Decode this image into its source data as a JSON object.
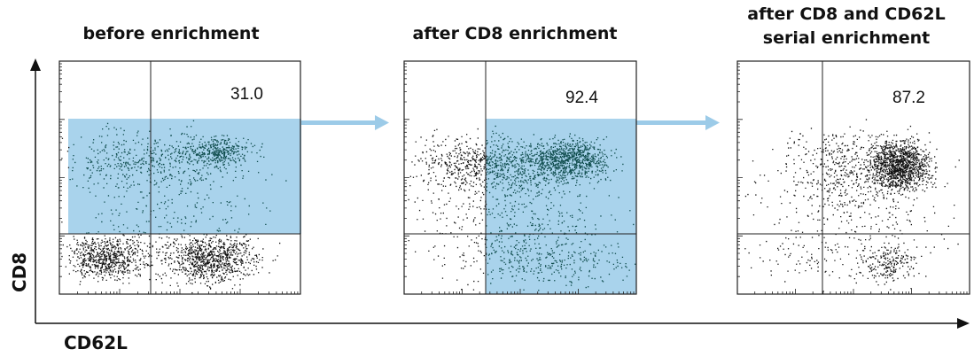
{
  "x_axis_label": "CD62L",
  "y_axis_label": "CD8",
  "colors": {
    "gate_fill": "#a9d3ec",
    "arrow": "#9ccbe8",
    "dot_outside_gate": "#111111",
    "dot_inside_gate": "#0c4a4a",
    "frame": "#222222"
  },
  "panels": [
    {
      "title_lines": [
        "before enrichment"
      ],
      "quadrant_percent": "31.0",
      "gated": true
    },
    {
      "title_lines": [
        "after CD8 enrichment"
      ],
      "quadrant_percent": "92.4",
      "gated": true
    },
    {
      "title_lines": [
        "after CD8 and CD62L",
        "serial enrichment"
      ],
      "quadrant_percent": "87.2",
      "gated": false
    }
  ],
  "chart_data": {
    "type": "scatter",
    "title": "",
    "xlabel": "CD62L",
    "ylabel": "CD8",
    "panels": [
      {
        "title": "before enrichment",
        "gated_quadrant_value": 31.0
      },
      {
        "title": "after CD8 enrichment",
        "gated_quadrant_value": 92.4
      },
      {
        "title": "after CD8 and CD62L serial enrichment",
        "gated_quadrant_value": 87.2
      }
    ]
  }
}
